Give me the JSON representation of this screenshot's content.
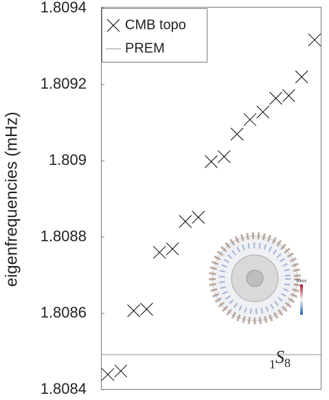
{
  "chart_data": {
    "type": "scatter",
    "y_label": "eigenfrequencies (mHz)",
    "ylim": [
      1.8084,
      1.8094
    ],
    "yticks": [
      1.8084,
      1.8086,
      1.8088,
      1.809,
      1.8092,
      1.8094
    ],
    "legend": "upper left",
    "series": [
      {
        "name": "CMB topo",
        "color": "#000000",
        "marker": "x",
        "values": [
          1.80844,
          1.808449,
          1.808607,
          1.808611,
          1.80876,
          1.808769,
          1.808841,
          1.808852,
          1.808998,
          1.809011,
          1.80907,
          1.809108,
          1.809128,
          1.809164,
          1.809171,
          1.80922,
          1.809317
        ]
      },
      {
        "name": "PREM",
        "color": "#8c8c8c",
        "marker": "hline",
        "values": [
          1.808492
        ]
      }
    ],
    "mode_label": {
      "order": "1",
      "letter": "S",
      "degree": "8"
    },
    "inset_label": "Radial"
  }
}
